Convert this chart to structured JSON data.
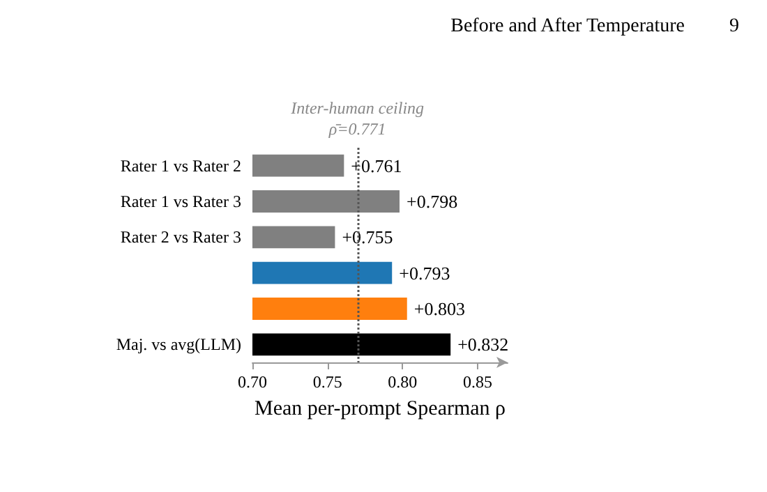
{
  "chart_data": {
    "type": "bar",
    "orientation": "horizontal",
    "categories": [
      "Rater 1 vs Rater 2",
      "Rater 1 vs Rater 3",
      "Rater 2 vs Rater 3",
      null,
      null,
      "Maj. vs avg(LLM)"
    ],
    "values": [
      0.761,
      0.798,
      0.755,
      0.793,
      0.803,
      0.832
    ],
    "colors": [
      "#808080",
      "#808080",
      "#808080",
      "#1f77b4",
      "#ff7f0e",
      "#000000"
    ],
    "value_labels": [
      "+0.761",
      "+0.798",
      "+0.755",
      "+0.793",
      "+0.803",
      "+0.832"
    ],
    "xlabel": "Mean per-prompt Spearman ρ",
    "xlim": [
      0.7,
      0.87
    ],
    "xticks": [
      {
        "value": 0.7,
        "label": "0.70"
      },
      {
        "value": 0.75,
        "label": "0.75"
      },
      {
        "value": 0.8,
        "label": "0.80"
      },
      {
        "value": 0.85,
        "label": "0.85"
      }
    ],
    "ref_lines": [
      {
        "axis": "x",
        "value": 0.771,
        "label": "Inter-human ceiling\nρ̄=0.771",
        "color": "#555555",
        "line_style": "dotted"
      }
    ],
    "annotations": [
      "Before and After Temperature",
      "9"
    ],
    "grid": false
  }
}
